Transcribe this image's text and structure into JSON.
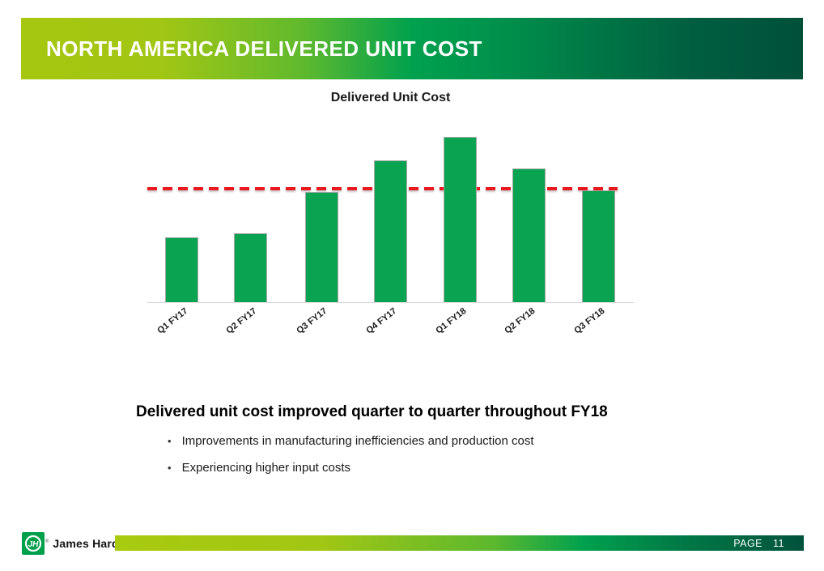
{
  "slide": {
    "title": "NORTH AMERICA DELIVERED UNIT COST"
  },
  "chart_data": {
    "type": "bar",
    "title": "Delivered Unit Cost",
    "categories": [
      "Q1 FY17",
      "Q2 FY17",
      "Q3 FY17",
      "Q4 FY17",
      "Q1 FY18",
      "Q2 FY18",
      "Q3 FY18"
    ],
    "values": [
      80,
      85,
      136,
      175,
      204,
      165,
      138
    ],
    "reference_line": 140,
    "value_note": "No y-axis or data labels shown in chart; values are relative bar heights (dashed red reference line = 140 on same relative scale)",
    "xlabel": "",
    "ylabel": "",
    "legend": "none",
    "grid": false,
    "bar_color": "#0aa351",
    "reference_line_color": "#e8191f"
  },
  "summary": {
    "heading": "Delivered unit cost improved quarter to quarter throughout FY18",
    "bullet_char": "•",
    "bullets": [
      "Improvements in manufacturing inefficiencies and production cost",
      "Experiencing higher input costs"
    ]
  },
  "footer": {
    "brand": "James Hardie",
    "logo_monogram": "JH",
    "registered_mark": "®",
    "page_label": "PAGE",
    "page_number": "11"
  },
  "colors": {
    "banner_gradient": [
      "#a6c70f",
      "#00a14e",
      "#00503a"
    ],
    "footer_gradient": [
      "#a8ca0f",
      "#00a14e",
      "#00523c"
    ],
    "bar_fill": "#0aa351",
    "bar_border": "#a8a8a8",
    "reference_line": "#e8191f",
    "logo_green": "#00a04b",
    "banner_text": "#ffffff",
    "page_strip_text": "#ffffff"
  }
}
